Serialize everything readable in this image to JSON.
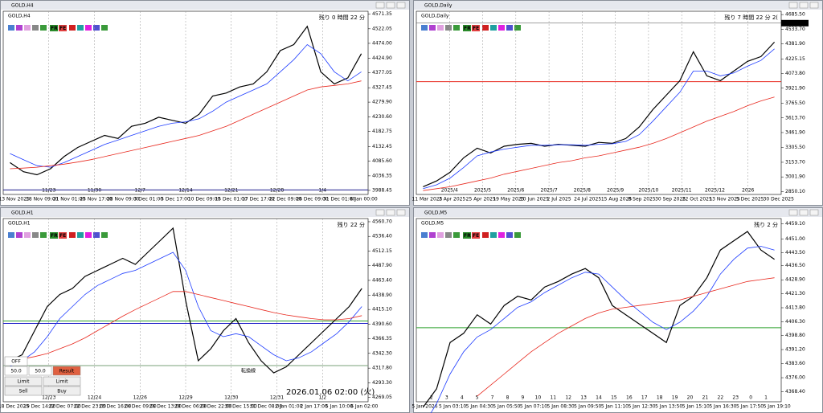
{
  "toolbar": [
    "FR",
    "FE"
  ],
  "trade_panel": {
    "mode": "OFF",
    "lot1": "50.0",
    "lot2": "50.0",
    "result": "Result",
    "limit1": "Limit",
    "limit2": "Limit",
    "sell": "Sell",
    "buy": "Buy"
  },
  "annotations": {
    "timestamp": "2026.01.06 02:00 (火)",
    "line_label": "転換線"
  },
  "chart_data": [
    {
      "type": "line",
      "title": "GOLD,H4",
      "countdown": "残り 0 時間 22 分",
      "ylim": [
        3975,
        4580
      ],
      "yticks": [
        4571.35,
        4522.05,
        {
          "value": 4474,
          "label": "4474.00"
        },
        {
          "value": 4424.9,
          "label": "4424.90"
        },
        4377.05,
        4327.45,
        {
          "value": 4279.9,
          "label": "4279.90"
        },
        {
          "value": 4230.6,
          "label": "4230.60"
        },
        4182.75,
        4132.45,
        {
          "value": 4085.6,
          "label": "4085.60"
        },
        4036.35,
        3988.45
      ],
      "categories": [
        "13 Nov 2025",
        null,
        "18 Nov 09:00",
        null,
        "21 Nov 01:00",
        null,
        "25 Nov 17:00",
        null,
        "28 Nov 09:00",
        null,
        "3 Dec 01:00",
        null,
        "5 Dec 17:00",
        null,
        "10 Dec 09:00",
        null,
        "15 Dec 01:00",
        null,
        "17 Dec 17:00",
        null,
        "22 Dec 09:00",
        null,
        "26 Dec 09:00",
        null,
        "31 Dec 01:00",
        null,
        "6 Jan 00:00"
      ],
      "period_labels": [
        "11/23",
        "11/30",
        "12/7",
        "12/14",
        "12/21",
        "12/28",
        "1/4"
      ],
      "series": [
        {
          "color": "#000000",
          "values": [
            4080,
            4050,
            4040,
            4060,
            4100,
            4130,
            4150,
            4170,
            4160,
            4200,
            4210,
            4230,
            4220,
            4210,
            4240,
            4300,
            4310,
            4330,
            4340,
            4380,
            4450,
            4470,
            4530,
            4380,
            4340,
            4360,
            4440
          ]
        },
        {
          "color": "#1e3cff",
          "values": [
            4110,
            4090,
            4070,
            4065,
            4080,
            4100,
            4120,
            4140,
            4155,
            4170,
            4185,
            4200,
            4210,
            4215,
            4225,
            4250,
            4280,
            4300,
            4320,
            4340,
            4380,
            4420,
            4470,
            4440,
            4380,
            4350,
            4380
          ]
        },
        {
          "color": "#e8281e",
          "values": [
            4060,
            4062,
            4065,
            4070,
            4075,
            4082,
            4090,
            4100,
            4110,
            4120,
            4130,
            4140,
            4150,
            4160,
            4170,
            4185,
            4200,
            4220,
            4240,
            4260,
            4280,
            4300,
            4320,
            4330,
            4335,
            4340,
            4350
          ]
        }
      ],
      "hlines": [
        {
          "value": 3990,
          "color": "#1e1e8c"
        }
      ]
    },
    {
      "type": "line",
      "title": "GOLD,Daily",
      "countdown": "残り 7 時間 22 分 2(",
      "ylim": [
        2820,
        4720
      ],
      "yticks": [
        {
          "value": 4685.5,
          "label": "4685.50"
        },
        {
          "value": 4533.7,
          "label": "4533.70"
        },
        {
          "value": 4381.9,
          "label": "4381.90"
        },
        4225.15,
        {
          "value": 4073.8,
          "label": "4073.80"
        },
        {
          "value": 3921.9,
          "label": "3921.90"
        },
        {
          "value": 3765.5,
          "label": "3765.50"
        },
        {
          "value": 3613.7,
          "label": "3613.70"
        },
        {
          "value": 3461.9,
          "label": "3461.90"
        },
        {
          "value": 3305.5,
          "label": "3305.50"
        },
        {
          "value": 3153.7,
          "label": "3153.70"
        },
        {
          "value": 3001.9,
          "label": "3001.90"
        },
        {
          "value": 2850.1,
          "label": "2850.10"
        }
      ],
      "categories": [
        "11 Mar 2025",
        null,
        "2 Apr 2025",
        null,
        "25 Apr 2025",
        null,
        "19 May 2025",
        null,
        "10 Jun 2025",
        null,
        "2 Jul 2025",
        null,
        "24 Jul 2025",
        null,
        "15 Aug 2025",
        null,
        "8 Sep 2025",
        null,
        "30 Sep 2025",
        null,
        "22 Oct 2025",
        null,
        "13 Nov 2025",
        null,
        "5 Dec 2025",
        null,
        "30 Dec 2025"
      ],
      "period_labels": [
        "2025/4",
        "2025/5",
        "2025/6",
        "2025/7",
        "2025/8",
        "2025/9",
        "2025/10",
        "2025/11",
        "2025/12",
        "2026"
      ],
      "current_price": 4596.64,
      "series": [
        {
          "color": "#000000",
          "values": [
            2900,
            2960,
            3050,
            3200,
            3300,
            3250,
            3320,
            3340,
            3350,
            3320,
            3340,
            3330,
            3320,
            3360,
            3350,
            3400,
            3520,
            3700,
            3850,
            4000,
            4300,
            4050,
            4000,
            4100,
            4200,
            4250,
            4400
          ]
        },
        {
          "color": "#1e3cff",
          "values": [
            2880,
            2920,
            2990,
            3100,
            3220,
            3260,
            3290,
            3310,
            3330,
            3330,
            3335,
            3335,
            3330,
            3340,
            3345,
            3370,
            3440,
            3580,
            3730,
            3880,
            4100,
            4100,
            4050,
            4080,
            4150,
            4210,
            4330
          ]
        },
        {
          "color": "#e8281e",
          "values": [
            2860,
            2880,
            2900,
            2930,
            2960,
            2990,
            3030,
            3060,
            3090,
            3120,
            3150,
            3170,
            3200,
            3220,
            3250,
            3280,
            3310,
            3350,
            3400,
            3460,
            3520,
            3580,
            3630,
            3680,
            3740,
            3790,
            3830
          ]
        }
      ],
      "hlines": [
        {
          "value": 3990,
          "color": "#e8281e"
        }
      ]
    },
    {
      "type": "line",
      "title": "GOLD,H1",
      "countdown": "残り 22 分",
      "ylim": [
        4262,
        4566
      ],
      "yticks": [
        {
          "value": 4560.7,
          "label": "4560.70"
        },
        {
          "value": 4536.4,
          "label": "4536.40"
        },
        4512.15,
        {
          "value": 4487.9,
          "label": "4487.90"
        },
        {
          "value": 4463.4,
          "label": "4463.40"
        },
        {
          "value": 4438.9,
          "label": "4438.90"
        },
        {
          "value": 4415.1,
          "label": "4415.10"
        },
        {
          "value": 4390.6,
          "label": "4390.60"
        },
        4366.35,
        {
          "value": 4342.3,
          "label": "4342.30"
        },
        {
          "value": 4317.8,
          "label": "4317.80"
        },
        {
          "value": 4293.3,
          "label": "4293.30"
        },
        4269.05
      ],
      "categories": [
        "18 Dec 2025",
        null,
        "19 Dec 14:00",
        null,
        "22 Dec 07:00",
        null,
        "22 Dec 23:00",
        null,
        "23 Dec 16:00",
        null,
        "24 Dec 09:00",
        null,
        "26 Dec 13:00",
        null,
        "29 Dec 06:00",
        null,
        "29 Dec 22:00",
        null,
        "30 Dec 15:00",
        null,
        "31 Dec 08:00",
        null,
        "2 Jan 01:00",
        null,
        "2 Jan 17:00",
        null,
        "5 Jan 10:00",
        null,
        "6 Jan 02:00"
      ],
      "period_labels": [
        "12/23",
        "12/24",
        "12/26",
        "12/29",
        "12/30",
        "12/31",
        "1/2"
      ],
      "series": [
        {
          "color": "#000000",
          "values": [
            4330,
            4340,
            4380,
            4420,
            4440,
            4450,
            4470,
            4480,
            4490,
            4500,
            4490,
            4510,
            4530,
            4550,
            4430,
            4330,
            4350,
            4380,
            4400,
            4360,
            4330,
            4310,
            4320,
            4340,
            4360,
            4380,
            4400,
            4420,
            4450
          ]
        },
        {
          "color": "#1e3cff",
          "values": [
            4320,
            4330,
            4345,
            4370,
            4400,
            4420,
            4440,
            4455,
            4465,
            4475,
            4480,
            4490,
            4500,
            4510,
            4480,
            4420,
            4380,
            4370,
            4375,
            4370,
            4355,
            4340,
            4330,
            4335,
            4345,
            4360,
            4375,
            4395,
            4420
          ]
        },
        {
          "color": "#e8281e",
          "values": [
            4330,
            4333,
            4337,
            4342,
            4350,
            4358,
            4368,
            4380,
            4392,
            4404,
            4415,
            4425,
            4435,
            4445,
            4445,
            4440,
            4435,
            4430,
            4425,
            4420,
            4415,
            4410,
            4406,
            4403,
            4400,
            4398,
            4398,
            4400,
            4405
          ]
        }
      ],
      "hlines": [
        {
          "value": 4396,
          "color": "#2ca02c"
        },
        {
          "value": 4392,
          "color": "#1e1ec8"
        },
        {
          "value": 4322,
          "color": "#7aa07a"
        }
      ]
    },
    {
      "type": "line",
      "title": "GOLD,M5",
      "countdown": "残り 2 分",
      "ylim": [
        4363,
        4462
      ],
      "yticks": [
        {
          "value": 4459.1,
          "label": "4459.10"
        },
        {
          "value": 4451,
          "label": "4451.00"
        },
        {
          "value": 4443.5,
          "label": "4443.50"
        },
        {
          "value": 4436.5,
          "label": "4436.50"
        },
        {
          "value": 4428.9,
          "label": "4428.90"
        },
        {
          "value": 4421.3,
          "label": "4421.30"
        },
        {
          "value": 4413.8,
          "label": "4413.80"
        },
        {
          "value": 4406.3,
          "label": "4406.30"
        },
        {
          "value": 4398.8,
          "label": "4398.80"
        },
        {
          "value": 4391.2,
          "label": "4391.20"
        },
        {
          "value": 4383.6,
          "label": "4383.60"
        },
        {
          "value": 4376,
          "label": "4376.00"
        },
        {
          "value": 4368.4,
          "label": "4368.40"
        }
      ],
      "categories": [
        "5 Jan 2026",
        null,
        "5 Jan 03:10",
        null,
        "5 Jan 04:30",
        null,
        "5 Jan 05:50",
        null,
        "5 Jan 07:10",
        null,
        "5 Jan 08:30",
        null,
        "5 Jan 09:50",
        null,
        "5 Jan 11:10",
        null,
        "5 Jan 12:30",
        null,
        "5 Jan 13:50",
        null,
        "5 Jan 15:10",
        null,
        "5 Jan 16:30",
        null,
        "5 Jan 17:50",
        null,
        "5 Jan 19:10"
      ],
      "period_labels": [
        "2",
        "3",
        "4",
        "5",
        "7",
        "8",
        "9",
        "10",
        "11",
        "12",
        "13",
        "14",
        "15",
        "16",
        "17",
        "18",
        "19",
        "20",
        "21",
        "22",
        "23",
        "0",
        "1"
      ],
      "series": [
        {
          "color": "#000000",
          "values": [
            4360,
            4370,
            4395,
            4400,
            4410,
            4405,
            4415,
            4420,
            4418,
            4425,
            4428,
            4432,
            4435,
            4430,
            4415,
            4410,
            4405,
            4400,
            4395,
            4415,
            4420,
            4430,
            4445,
            4450,
            4455,
            4445,
            4440
          ]
        },
        {
          "color": "#1e3cff",
          "values": [
            4350,
            4362,
            4378,
            4390,
            4398,
            4402,
            4408,
            4414,
            4417,
            4422,
            4426,
            4430,
            4433,
            4432,
            4425,
            4418,
            4412,
            4406,
            4402,
            4406,
            4412,
            4420,
            4432,
            4440,
            4446,
            4447,
            4445
          ]
        },
        {
          "color": "#e8281e",
          "values": [
            null,
            null,
            null,
            null,
            4366,
            4372,
            4378,
            4384,
            4390,
            4395,
            4400,
            4404,
            4408,
            4411,
            4413,
            4414,
            4415,
            4416,
            4417,
            4418,
            4420,
            4422,
            4424,
            4426,
            4428,
            4429,
            4430
          ]
        }
      ],
      "hlines": [
        {
          "value": 4403,
          "color": "#2ca02c"
        }
      ]
    }
  ]
}
